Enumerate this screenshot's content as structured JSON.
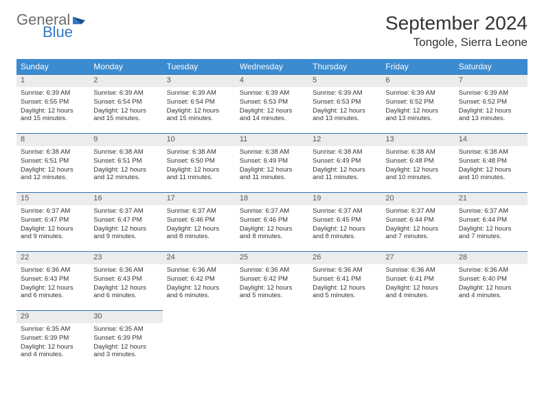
{
  "logo": {
    "text1": "General",
    "text2": "Blue",
    "accent_color": "#2f78c3",
    "gray_color": "#6b6b6b"
  },
  "header": {
    "title": "September 2024",
    "location": "Tongole, Sierra Leone"
  },
  "colors": {
    "header_bar": "#3b8bd0",
    "row_border": "#2f6ea8",
    "daynum_bg": "#ececec",
    "text": "#333333"
  },
  "daynames": [
    "Sunday",
    "Monday",
    "Tuesday",
    "Wednesday",
    "Thursday",
    "Friday",
    "Saturday"
  ],
  "days": [
    {
      "n": 1,
      "sunrise": "6:39 AM",
      "sunset": "6:55 PM",
      "daylight": "12 hours and 15 minutes."
    },
    {
      "n": 2,
      "sunrise": "6:39 AM",
      "sunset": "6:54 PM",
      "daylight": "12 hours and 15 minutes."
    },
    {
      "n": 3,
      "sunrise": "6:39 AM",
      "sunset": "6:54 PM",
      "daylight": "12 hours and 15 minutes."
    },
    {
      "n": 4,
      "sunrise": "6:39 AM",
      "sunset": "6:53 PM",
      "daylight": "12 hours and 14 minutes."
    },
    {
      "n": 5,
      "sunrise": "6:39 AM",
      "sunset": "6:53 PM",
      "daylight": "12 hours and 13 minutes."
    },
    {
      "n": 6,
      "sunrise": "6:39 AM",
      "sunset": "6:52 PM",
      "daylight": "12 hours and 13 minutes."
    },
    {
      "n": 7,
      "sunrise": "6:39 AM",
      "sunset": "6:52 PM",
      "daylight": "12 hours and 13 minutes."
    },
    {
      "n": 8,
      "sunrise": "6:38 AM",
      "sunset": "6:51 PM",
      "daylight": "12 hours and 12 minutes."
    },
    {
      "n": 9,
      "sunrise": "6:38 AM",
      "sunset": "6:51 PM",
      "daylight": "12 hours and 12 minutes."
    },
    {
      "n": 10,
      "sunrise": "6:38 AM",
      "sunset": "6:50 PM",
      "daylight": "12 hours and 11 minutes."
    },
    {
      "n": 11,
      "sunrise": "6:38 AM",
      "sunset": "6:49 PM",
      "daylight": "12 hours and 11 minutes."
    },
    {
      "n": 12,
      "sunrise": "6:38 AM",
      "sunset": "6:49 PM",
      "daylight": "12 hours and 11 minutes."
    },
    {
      "n": 13,
      "sunrise": "6:38 AM",
      "sunset": "6:48 PM",
      "daylight": "12 hours and 10 minutes."
    },
    {
      "n": 14,
      "sunrise": "6:38 AM",
      "sunset": "6:48 PM",
      "daylight": "12 hours and 10 minutes."
    },
    {
      "n": 15,
      "sunrise": "6:37 AM",
      "sunset": "6:47 PM",
      "daylight": "12 hours and 9 minutes."
    },
    {
      "n": 16,
      "sunrise": "6:37 AM",
      "sunset": "6:47 PM",
      "daylight": "12 hours and 9 minutes."
    },
    {
      "n": 17,
      "sunrise": "6:37 AM",
      "sunset": "6:46 PM",
      "daylight": "12 hours and 8 minutes."
    },
    {
      "n": 18,
      "sunrise": "6:37 AM",
      "sunset": "6:46 PM",
      "daylight": "12 hours and 8 minutes."
    },
    {
      "n": 19,
      "sunrise": "6:37 AM",
      "sunset": "6:45 PM",
      "daylight": "12 hours and 8 minutes."
    },
    {
      "n": 20,
      "sunrise": "6:37 AM",
      "sunset": "6:44 PM",
      "daylight": "12 hours and 7 minutes."
    },
    {
      "n": 21,
      "sunrise": "6:37 AM",
      "sunset": "6:44 PM",
      "daylight": "12 hours and 7 minutes."
    },
    {
      "n": 22,
      "sunrise": "6:36 AM",
      "sunset": "6:43 PM",
      "daylight": "12 hours and 6 minutes."
    },
    {
      "n": 23,
      "sunrise": "6:36 AM",
      "sunset": "6:43 PM",
      "daylight": "12 hours and 6 minutes."
    },
    {
      "n": 24,
      "sunrise": "6:36 AM",
      "sunset": "6:42 PM",
      "daylight": "12 hours and 6 minutes."
    },
    {
      "n": 25,
      "sunrise": "6:36 AM",
      "sunset": "6:42 PM",
      "daylight": "12 hours and 5 minutes."
    },
    {
      "n": 26,
      "sunrise": "6:36 AM",
      "sunset": "6:41 PM",
      "daylight": "12 hours and 5 minutes."
    },
    {
      "n": 27,
      "sunrise": "6:36 AM",
      "sunset": "6:41 PM",
      "daylight": "12 hours and 4 minutes."
    },
    {
      "n": 28,
      "sunrise": "6:36 AM",
      "sunset": "6:40 PM",
      "daylight": "12 hours and 4 minutes."
    },
    {
      "n": 29,
      "sunrise": "6:35 AM",
      "sunset": "6:39 PM",
      "daylight": "12 hours and 4 minutes."
    },
    {
      "n": 30,
      "sunrise": "6:35 AM",
      "sunset": "6:39 PM",
      "daylight": "12 hours and 3 minutes."
    }
  ],
  "labels": {
    "sunrise_prefix": "Sunrise: ",
    "sunset_prefix": "Sunset: ",
    "daylight_prefix": "Daylight: "
  }
}
